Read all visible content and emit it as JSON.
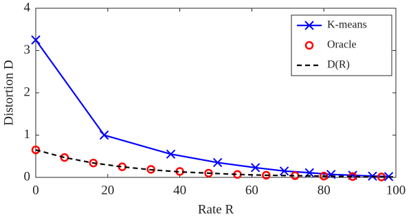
{
  "chart_data": {
    "type": "line",
    "xlabel": "Rate R",
    "ylabel": "Distortion D",
    "xlim": [
      0,
      100
    ],
    "ylim": [
      0,
      4
    ],
    "xticks": [
      0,
      20,
      40,
      60,
      80,
      100
    ],
    "yticks": [
      0,
      1,
      2,
      3,
      4
    ],
    "grid": false,
    "legend": "upper right",
    "series": [
      {
        "name": "K-means",
        "color": "#0000ff",
        "style": "solid-x",
        "x": [
          0,
          19,
          37.5,
          50.5,
          61,
          69,
          76,
          82,
          88,
          93.5,
          98
        ],
        "values": [
          3.25,
          1.0,
          0.55,
          0.35,
          0.23,
          0.15,
          0.11,
          0.07,
          0.05,
          0.03,
          0.02
        ]
      },
      {
        "name": "Oracle",
        "color": "#ff0000",
        "style": "circle",
        "x": [
          0,
          8,
          16,
          24,
          32,
          40,
          48,
          56,
          64,
          72,
          80,
          88,
          96
        ],
        "values": [
          0.65,
          0.47,
          0.34,
          0.25,
          0.19,
          0.14,
          0.1,
          0.07,
          0.05,
          0.04,
          0.03,
          0.02,
          0.01
        ]
      },
      {
        "name": "D(R)",
        "color": "#000000",
        "style": "dashed",
        "x": [
          0,
          8,
          16,
          24,
          32,
          40,
          48,
          56,
          64,
          72,
          80,
          88,
          96,
          100
        ],
        "values": [
          0.65,
          0.47,
          0.34,
          0.25,
          0.18,
          0.13,
          0.1,
          0.07,
          0.05,
          0.04,
          0.03,
          0.02,
          0.01,
          0.01
        ]
      }
    ]
  }
}
